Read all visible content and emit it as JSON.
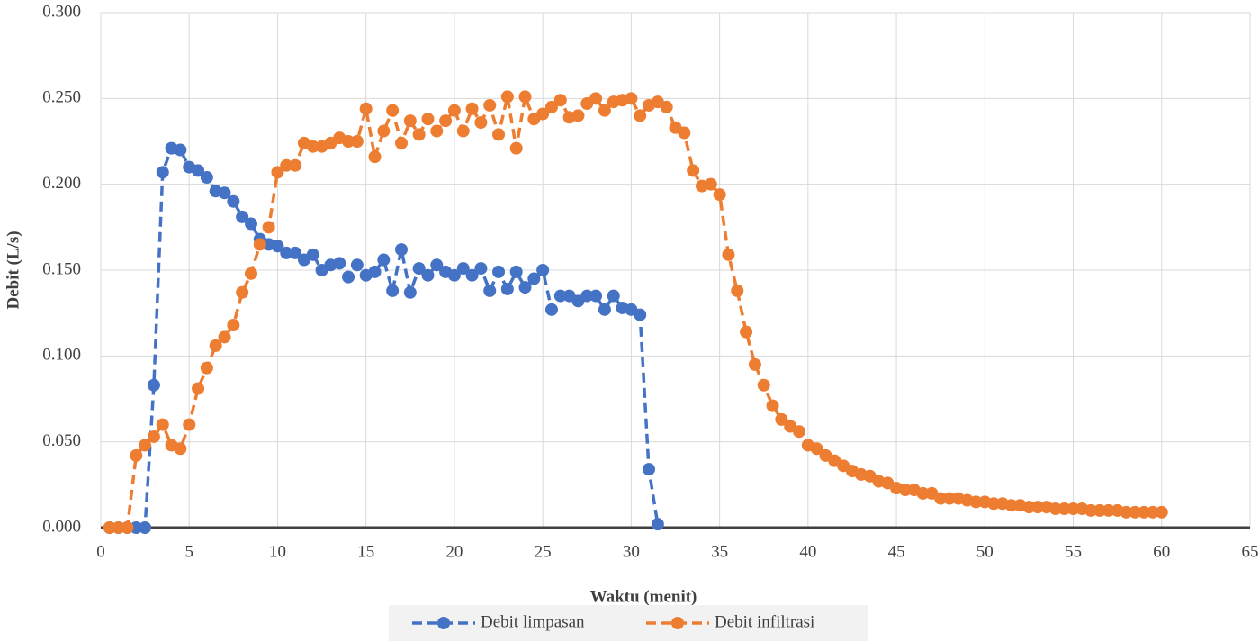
{
  "chart_data": {
    "type": "line",
    "x_label": "Waktu (menit)",
    "y_label": "Debit (L/s)",
    "xlim": [
      0,
      65
    ],
    "xticks": [
      0,
      5,
      10,
      15,
      20,
      25,
      30,
      35,
      40,
      45,
      50,
      55,
      60,
      65
    ],
    "ylim": [
      0,
      0.3
    ],
    "yticks": [
      {
        "value": 0,
        "label": "0.000"
      },
      {
        "value": 0.05,
        "label": "0.050"
      },
      {
        "value": 0.1,
        "label": "0.100"
      },
      {
        "value": 0.15,
        "label": "0.150"
      },
      {
        "value": 0.2,
        "label": "0.200"
      },
      {
        "value": 0.25,
        "label": "0.250"
      },
      {
        "value": 0.3,
        "label": "0.300"
      }
    ],
    "grid": true,
    "legend": "bottom",
    "series": [
      {
        "name": "Debit limpasan",
        "color": "#4472c4",
        "x": [
          0.5,
          1,
          1.5,
          2,
          2.5,
          3,
          3.5,
          4,
          4.5,
          5,
          5.5,
          6,
          6.5,
          7,
          7.5,
          8,
          8.5,
          9,
          9.5,
          10,
          10.5,
          11,
          11.5,
          12,
          12.5,
          13,
          13.5,
          14,
          14.5,
          15,
          15.5,
          16,
          16.5,
          17,
          17.5,
          18,
          18.5,
          19,
          19.5,
          20,
          20.5,
          21,
          21.5,
          22,
          22.5,
          23,
          23.5,
          24,
          24.5,
          25,
          25.5,
          26,
          26.5,
          27,
          27.5,
          28,
          28.5,
          29,
          29.5,
          30,
          30.5,
          31,
          31.5
        ],
        "values": [
          0,
          0,
          0,
          0,
          0,
          0.083,
          0.207,
          0.221,
          0.22,
          0.21,
          0.208,
          0.204,
          0.196,
          0.195,
          0.19,
          0.181,
          0.177,
          0.168,
          0.165,
          0.164,
          0.16,
          0.16,
          0.156,
          0.159,
          0.15,
          0.153,
          0.154,
          0.146,
          0.153,
          0.147,
          0.149,
          0.156,
          0.138,
          0.162,
          0.137,
          0.151,
          0.147,
          0.153,
          0.149,
          0.147,
          0.151,
          0.147,
          0.151,
          0.138,
          0.149,
          0.139,
          0.149,
          0.14,
          0.145,
          0.15,
          0.127,
          0.135,
          0.135,
          0.132,
          0.135,
          0.135,
          0.127,
          0.135,
          0.128,
          0.127,
          0.124,
          0.034,
          0.002
        ]
      },
      {
        "name": "Debit infiltrasi",
        "color": "#ed7d31",
        "x": [
          0.5,
          1,
          1.5,
          2,
          2.5,
          3,
          3.5,
          4,
          4.5,
          5,
          5.5,
          6,
          6.5,
          7,
          7.5,
          8,
          8.5,
          9,
          9.5,
          10,
          10.5,
          11,
          11.5,
          12,
          12.5,
          13,
          13.5,
          14,
          14.5,
          15,
          15.5,
          16,
          16.5,
          17,
          17.5,
          18,
          18.5,
          19,
          19.5,
          20,
          20.5,
          21,
          21.5,
          22,
          22.5,
          23,
          23.5,
          24,
          24.5,
          25,
          25.5,
          26,
          26.5,
          27,
          27.5,
          28,
          28.5,
          29,
          29.5,
          30,
          30.5,
          31,
          31.5,
          32,
          32.5,
          33,
          33.5,
          34,
          34.5,
          35,
          35.5,
          36,
          36.5,
          37,
          37.5,
          38,
          38.5,
          39,
          39.5,
          40,
          40.5,
          41,
          41.5,
          42,
          42.5,
          43,
          43.5,
          44,
          44.5,
          45,
          45.5,
          46,
          46.5,
          47,
          47.5,
          48,
          48.5,
          49,
          49.5,
          50,
          50.5,
          51,
          51.5,
          52,
          52.5,
          53,
          53.5,
          54,
          54.5,
          55,
          55.5,
          56,
          56.5,
          57,
          57.5,
          58,
          58.5,
          59,
          59.5,
          60
        ],
        "values": [
          0,
          0,
          0,
          0.042,
          0.048,
          0.053,
          0.06,
          0.048,
          0.046,
          0.06,
          0.081,
          0.093,
          0.106,
          0.111,
          0.118,
          0.137,
          0.148,
          0.165,
          0.175,
          0.207,
          0.211,
          0.211,
          0.224,
          0.222,
          0.222,
          0.224,
          0.227,
          0.225,
          0.225,
          0.244,
          0.216,
          0.231,
          0.243,
          0.224,
          0.237,
          0.229,
          0.238,
          0.231,
          0.237,
          0.243,
          0.231,
          0.244,
          0.236,
          0.246,
          0.229,
          0.251,
          0.221,
          0.251,
          0.238,
          0.241,
          0.245,
          0.249,
          0.239,
          0.24,
          0.247,
          0.25,
          0.243,
          0.248,
          0.249,
          0.25,
          0.24,
          0.246,
          0.248,
          0.245,
          0.233,
          0.23,
          0.208,
          0.199,
          0.2,
          0.194,
          0.159,
          0.138,
          0.114,
          0.095,
          0.083,
          0.071,
          0.063,
          0.059,
          0.056,
          0.048,
          0.046,
          0.042,
          0.039,
          0.036,
          0.033,
          0.031,
          0.03,
          0.027,
          0.026,
          0.023,
          0.022,
          0.022,
          0.02,
          0.02,
          0.017,
          0.017,
          0.017,
          0.016,
          0.015,
          0.015,
          0.014,
          0.014,
          0.013,
          0.013,
          0.012,
          0.012,
          0.012,
          0.011,
          0.011,
          0.011,
          0.011,
          0.01,
          0.01,
          0.01,
          0.01,
          0.009,
          0.009,
          0.009,
          0.009,
          0.009
        ]
      }
    ]
  }
}
